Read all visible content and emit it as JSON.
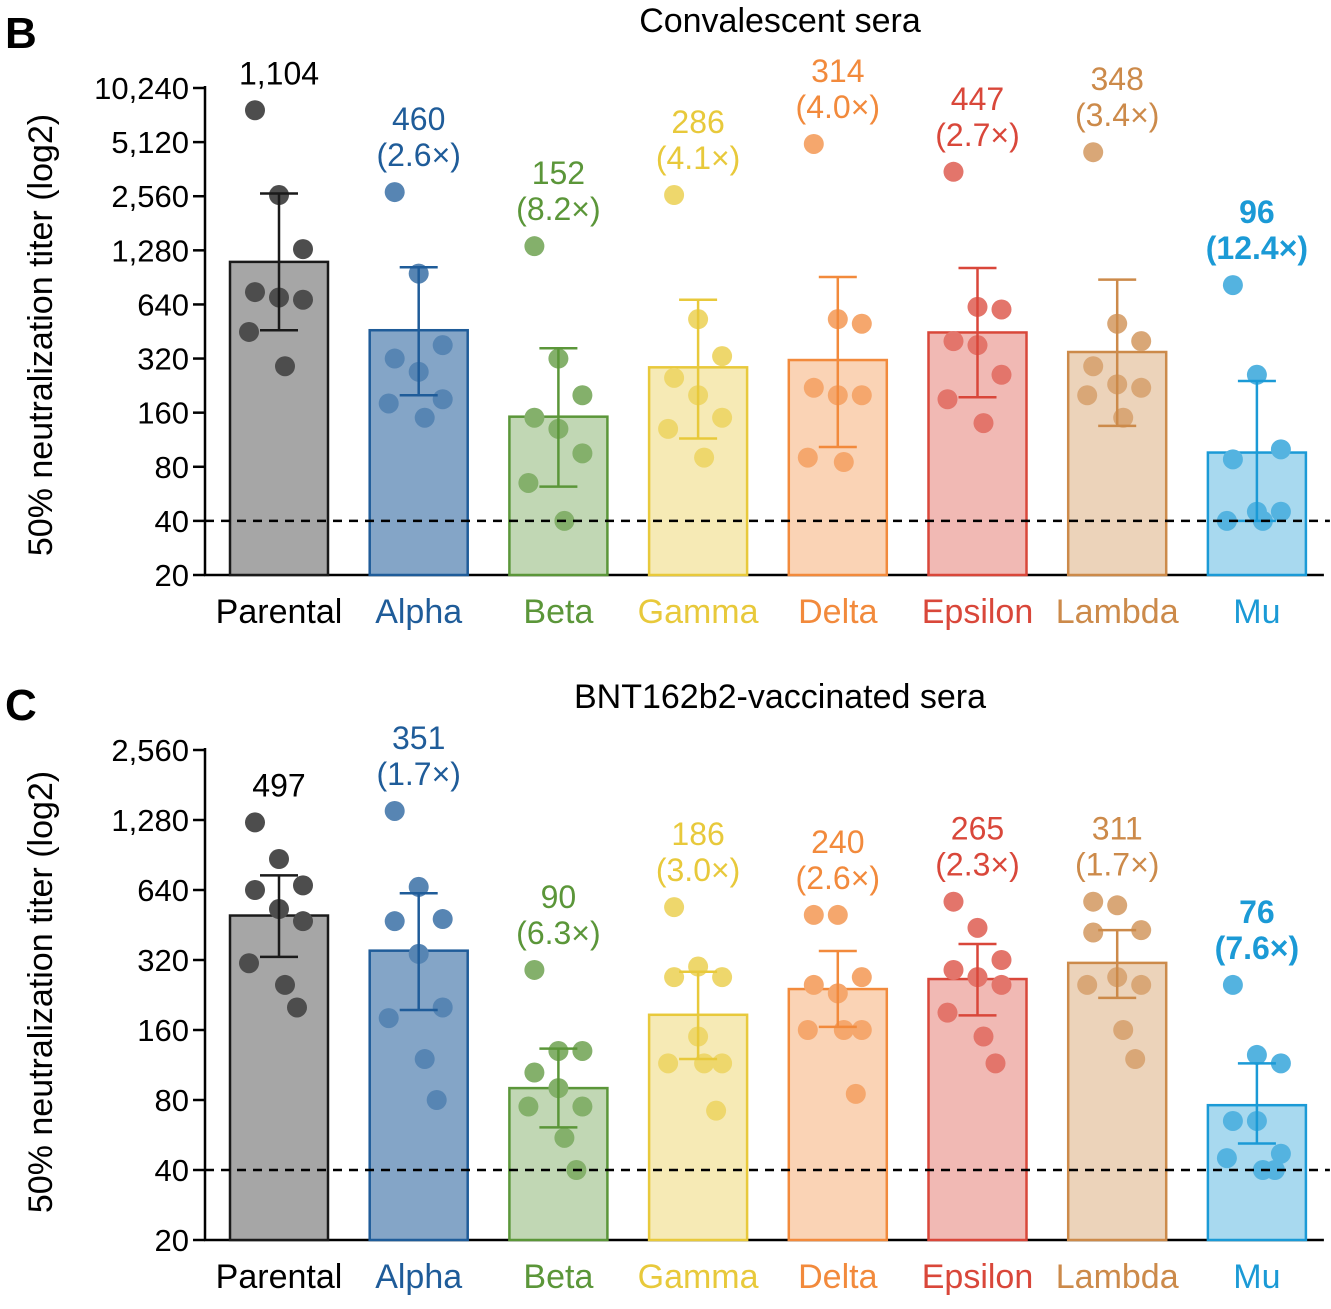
{
  "panels": [
    {
      "letter": "B",
      "title": "Convalescent sera",
      "ylabel": "50% neutralization titer (log2)"
    },
    {
      "letter": "C",
      "title": "BNT162b2-vaccinated sera",
      "ylabel": "50% neutralization titer (log2)"
    }
  ],
  "chart_data": [
    {
      "type": "bar",
      "title": "Convalescent sera",
      "ylabel": "50% neutralization titer (log2)",
      "y_scale": "log2",
      "ylim": [
        20,
        10240
      ],
      "yticks": [
        "20",
        "40",
        "80",
        "160",
        "320",
        "640",
        "1,280",
        "2,560",
        "5,120",
        "10,240"
      ],
      "ytick_values": [
        20,
        40,
        80,
        160,
        320,
        640,
        1280,
        2560,
        5120,
        10240
      ],
      "threshold": 40,
      "categories": [
        "Parental",
        "Alpha",
        "Beta",
        "Gamma",
        "Delta",
        "Epsilon",
        "Lambda",
        "Mu"
      ],
      "colors": [
        "#1a1a1a",
        "#1f5c99",
        "#5b9639",
        "#e8c93b",
        "#f28a3c",
        "#d9473a",
        "#cc8a4a",
        "#1b9ad6"
      ],
      "values": [
        1104,
        460,
        152,
        286,
        314,
        447,
        348,
        96
      ],
      "errors": [
        [
          460,
          2650
        ],
        [
          200,
          1030
        ],
        [
          62,
          365
        ],
        [
          115,
          680
        ],
        [
          103,
          910
        ],
        [
          195,
          1020
        ],
        [
          135,
          880
        ],
        [
          40,
          240
        ]
      ],
      "labels": [
        {
          "value": "1,104",
          "fold": ""
        },
        {
          "value": "460",
          "fold": "(2.6×)"
        },
        {
          "value": "152",
          "fold": "(8.2×)"
        },
        {
          "value": "286",
          "fold": "(4.1×)"
        },
        {
          "value": "314",
          "fold": "(4.0×)"
        },
        {
          "value": "447",
          "fold": "(2.7×)"
        },
        {
          "value": "348",
          "fold": "(3.4×)"
        },
        {
          "value": "96",
          "fold": "(12.4×)"
        }
      ],
      "points": [
        [
          7700,
          2600,
          1300,
          750,
          700,
          680,
          450,
          290
        ],
        [
          2700,
          950,
          380,
          320,
          270,
          190,
          180,
          150
        ],
        [
          1350,
          320,
          200,
          150,
          130,
          95,
          65,
          40
        ],
        [
          2600,
          530,
          330,
          250,
          200,
          150,
          130,
          90
        ],
        [
          5000,
          530,
          500,
          220,
          200,
          200,
          90,
          85
        ],
        [
          3500,
          620,
          600,
          400,
          380,
          260,
          190,
          140
        ],
        [
          4500,
          500,
          400,
          290,
          230,
          220,
          200,
          150
        ],
        [
          820,
          260,
          100,
          88,
          45,
          45,
          40,
          40
        ]
      ]
    },
    {
      "type": "bar",
      "title": "BNT162b2-vaccinated sera",
      "ylabel": "50% neutralization titer (log2)",
      "y_scale": "log2",
      "ylim": [
        20,
        2560
      ],
      "yticks": [
        "20",
        "40",
        "80",
        "160",
        "320",
        "640",
        "1,280",
        "2,560"
      ],
      "ytick_values": [
        20,
        40,
        80,
        160,
        320,
        640,
        1280,
        2560
      ],
      "threshold": 40,
      "categories": [
        "Parental",
        "Alpha",
        "Beta",
        "Gamma",
        "Delta",
        "Epsilon",
        "Lambda",
        "Mu"
      ],
      "colors": [
        "#1a1a1a",
        "#1f5c99",
        "#5b9639",
        "#e8c93b",
        "#f28a3c",
        "#d9473a",
        "#cc8a4a",
        "#1b9ad6"
      ],
      "values": [
        497,
        351,
        90,
        186,
        240,
        265,
        311,
        76
      ],
      "errors": [
        [
          330,
          740
        ],
        [
          195,
          620
        ],
        [
          61,
          133
        ],
        [
          120,
          285
        ],
        [
          165,
          350
        ],
        [
          185,
          375
        ],
        [
          220,
          430
        ],
        [
          52,
          115
        ]
      ],
      "labels": [
        {
          "value": "497",
          "fold": ""
        },
        {
          "value": "351",
          "fold": "(1.7×)"
        },
        {
          "value": "90",
          "fold": "(6.3×)"
        },
        {
          "value": "186",
          "fold": "(3.0×)"
        },
        {
          "value": "240",
          "fold": "(2.6×)"
        },
        {
          "value": "265",
          "fold": "(2.3×)"
        },
        {
          "value": "311",
          "fold": "(1.7×)"
        },
        {
          "value": "76",
          "fold": "(7.6×)"
        }
      ],
      "points": [
        [
          1250,
          870,
          670,
          640,
          530,
          470,
          310,
          250,
          200
        ],
        [
          1400,
          660,
          480,
          470,
          340,
          200,
          180,
          120,
          80
        ],
        [
          290,
          130,
          130,
          105,
          90,
          75,
          75,
          55,
          40
        ],
        [
          540,
          300,
          270,
          270,
          150,
          115,
          115,
          115,
          72
        ],
        [
          500,
          500,
          270,
          250,
          230,
          160,
          160,
          160,
          85
        ],
        [
          570,
          440,
          320,
          290,
          270,
          250,
          190,
          150,
          115
        ],
        [
          570,
          550,
          430,
          420,
          270,
          250,
          250,
          160,
          120
        ],
        [
          250,
          125,
          115,
          65,
          65,
          47,
          45,
          40,
          40
        ]
      ]
    }
  ]
}
